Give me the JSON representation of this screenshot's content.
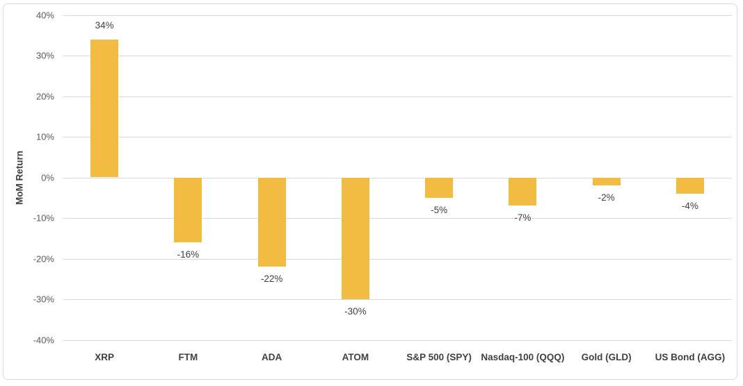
{
  "chart_data": {
    "type": "bar",
    "title": "",
    "xlabel": "",
    "ylabel": "MoM Return",
    "categories": [
      "XRP",
      "FTM",
      "ADA",
      "ATOM",
      "S&P 500 (SPY)",
      "Nasdaq-100 (QQQ)",
      "Gold (GLD)",
      "US Bond (AGG)"
    ],
    "values": [
      34,
      -16,
      -22,
      -30,
      -5,
      -7,
      -2,
      -4
    ],
    "data_labels": [
      "34%",
      "-16%",
      "-22%",
      "-30%",
      "-5%",
      "-7%",
      "-2%",
      "-4%"
    ],
    "ylim": [
      -40,
      40
    ],
    "ytick_step": 10,
    "ytick_labels": [
      "40%",
      "30%",
      "20%",
      "10%",
      "0%",
      "-10%",
      "-20%",
      "-30%",
      "-40%"
    ],
    "grid": true,
    "legend": false,
    "colors": {
      "bar": "#F2BC43",
      "gridline": "#D9D9D9",
      "tick_text": "#595959",
      "label_text": "#404040",
      "border": "#D9D9D9",
      "background": "#FFFFFF"
    }
  }
}
